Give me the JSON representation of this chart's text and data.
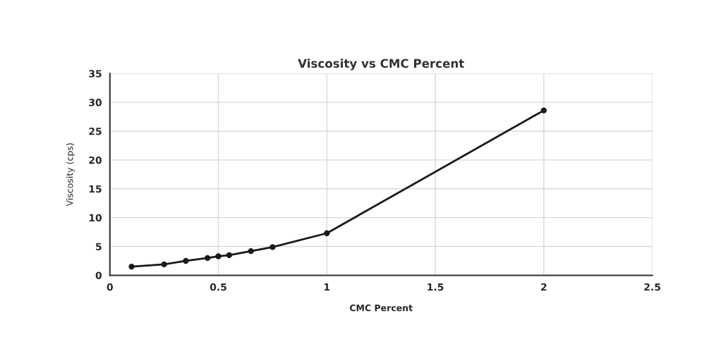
{
  "chart_data": {
    "type": "line",
    "title": "Viscosity vs CMC Percent",
    "xlabel": "CMC Percent",
    "ylabel": "Viscosity (cps)",
    "x": [
      0.1,
      0.25,
      0.35,
      0.45,
      0.5,
      0.55,
      0.65,
      0.75,
      1,
      2
    ],
    "series": [
      {
        "color": "#1a1a1a",
        "values": [
          1.5,
          1.9,
          2.5,
          3.0,
          3.3,
          3.5,
          4.2,
          4.9,
          7.3,
          28.6
        ]
      }
    ],
    "xlim": [
      0,
      2.5
    ],
    "xticks": [
      0,
      0.5,
      1,
      1.5,
      2,
      2.5
    ],
    "ylim": [
      0,
      35
    ],
    "yticks": [
      0,
      5,
      10,
      15,
      20,
      25,
      30,
      35
    ],
    "grid": true,
    "marker": "circle",
    "line_style": "solid"
  }
}
